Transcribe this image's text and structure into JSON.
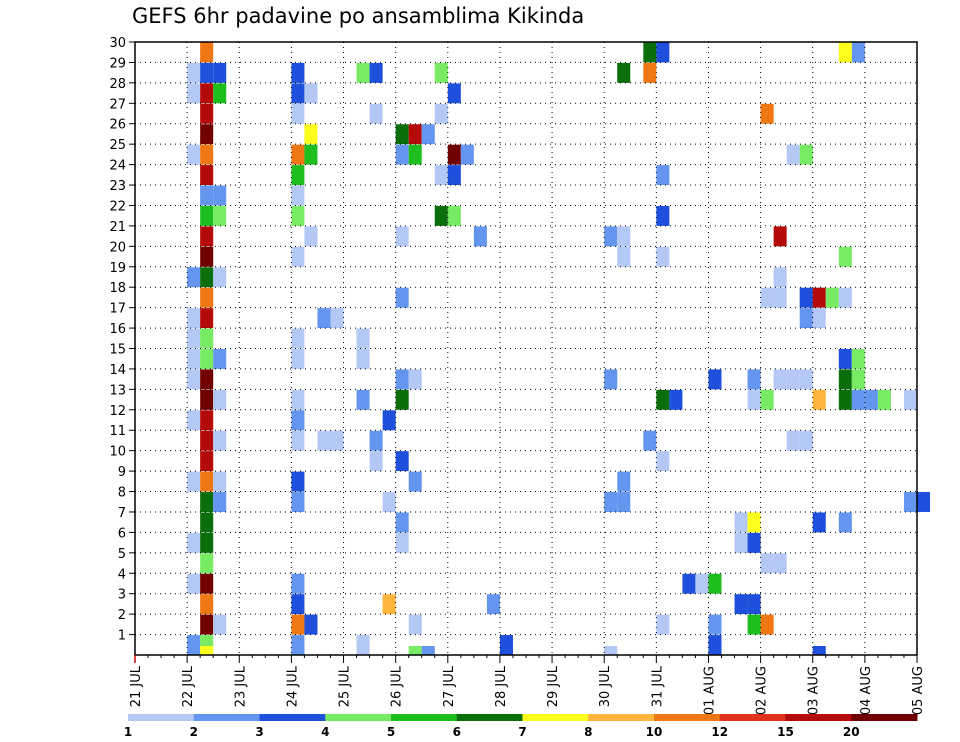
{
  "chart_data": {
    "type": "heatmap",
    "title": "GEFS 6hr padavine po ansamblima Kikinda",
    "x_tick_labels": [
      "21 JUL",
      "22 JUL",
      "23 JUL",
      "24 JUL",
      "25 JUL",
      "26 JUL",
      "27 JUL",
      "28 JUL",
      "29 JUL",
      "30 JUL",
      "31 JUL",
      "01 AUG",
      "02 AUG",
      "03 AUG",
      "04 AUG",
      "05 AUG"
    ],
    "y_tick_labels": [
      "1",
      "2",
      "3",
      "4",
      "5",
      "6",
      "7",
      "8",
      "9",
      "10",
      "11",
      "12",
      "13",
      "14",
      "15",
      "16",
      "17",
      "18",
      "19",
      "20",
      "21",
      "22",
      "23",
      "24",
      "25",
      "26",
      "27",
      "28",
      "29",
      "30"
    ],
    "x_unit": "6-hour step from 21 JUL 00Z",
    "y_unit": "ensemble member",
    "grid": true,
    "colorbar": {
      "tick_labels": [
        "1",
        "2",
        "3",
        "4",
        "5",
        "6",
        "7",
        "8",
        "10",
        "12",
        "15",
        "20"
      ],
      "colors": [
        "#b4c8f5",
        "#6496f0",
        "#1e50dc",
        "#78eb64",
        "#1ebe1e",
        "#0a6e0a",
        "#ffff1e",
        "#ffb43c",
        "#f07814",
        "#e1321e",
        "#b40a0a",
        "#700000"
      ]
    },
    "cells": [
      [
        0,
        4,
        1
      ],
      [
        0,
        5,
        3
      ],
      [
        0,
        12,
        1
      ],
      [
        0,
        17,
        0
      ],
      [
        0,
        28,
        2
      ],
      [
        0,
        44,
        2
      ],
      [
        1,
        5,
        11
      ],
      [
        1,
        6,
        0
      ],
      [
        1,
        12,
        8
      ],
      [
        1,
        13,
        2
      ],
      [
        1,
        21,
        0
      ],
      [
        1,
        40,
        0
      ],
      [
        1,
        44,
        1
      ],
      [
        1,
        47,
        4
      ],
      [
        1,
        48,
        8
      ],
      [
        2,
        5,
        8
      ],
      [
        2,
        12,
        2
      ],
      [
        2,
        19,
        7
      ],
      [
        2,
        27,
        1
      ],
      [
        2,
        46,
        2
      ],
      [
        2,
        47,
        2
      ],
      [
        3,
        4,
        0
      ],
      [
        3,
        5,
        11
      ],
      [
        3,
        12,
        1
      ],
      [
        3,
        42,
        2
      ],
      [
        3,
        43,
        0
      ],
      [
        3,
        44,
        4
      ],
      [
        4,
        5,
        3
      ],
      [
        4,
        48,
        0
      ],
      [
        4,
        49,
        0
      ],
      [
        5,
        4,
        0
      ],
      [
        5,
        5,
        5
      ],
      [
        5,
        20,
        0
      ],
      [
        5,
        46,
        0
      ],
      [
        5,
        47,
        2
      ],
      [
        6,
        5,
        5
      ],
      [
        6,
        20,
        1
      ],
      [
        6,
        46,
        0
      ],
      [
        6,
        47,
        6
      ],
      [
        6,
        52,
        2
      ],
      [
        6,
        54,
        1
      ],
      [
        7,
        5,
        5
      ],
      [
        7,
        6,
        1
      ],
      [
        7,
        12,
        1
      ],
      [
        7,
        19,
        0
      ],
      [
        7,
        36,
        1
      ],
      [
        7,
        37,
        1
      ],
      [
        7,
        59,
        1
      ],
      [
        7,
        60,
        2
      ],
      [
        8,
        4,
        0
      ],
      [
        8,
        5,
        8
      ],
      [
        8,
        6,
        0
      ],
      [
        8,
        12,
        2
      ],
      [
        8,
        21,
        1
      ],
      [
        8,
        37,
        1
      ],
      [
        9,
        5,
        10
      ],
      [
        9,
        18,
        0
      ],
      [
        9,
        20,
        2
      ],
      [
        9,
        40,
        0
      ],
      [
        10,
        5,
        10
      ],
      [
        10,
        6,
        0
      ],
      [
        10,
        12,
        0
      ],
      [
        10,
        14,
        0
      ],
      [
        10,
        15,
        0
      ],
      [
        10,
        18,
        1
      ],
      [
        10,
        39,
        1
      ],
      [
        10,
        50,
        0
      ],
      [
        10,
        51,
        0
      ],
      [
        11,
        4,
        0
      ],
      [
        11,
        5,
        10
      ],
      [
        11,
        12,
        1
      ],
      [
        11,
        19,
        2
      ],
      [
        12,
        5,
        11
      ],
      [
        12,
        6,
        0
      ],
      [
        12,
        12,
        0
      ],
      [
        12,
        17,
        1
      ],
      [
        12,
        20,
        5
      ],
      [
        12,
        40,
        5
      ],
      [
        12,
        41,
        2
      ],
      [
        12,
        47,
        0
      ],
      [
        12,
        48,
        3
      ],
      [
        12,
        52,
        7
      ],
      [
        12,
        54,
        5
      ],
      [
        12,
        55,
        1
      ],
      [
        12,
        56,
        1
      ],
      [
        12,
        57,
        3
      ],
      [
        12,
        59,
        0
      ],
      [
        13,
        4,
        0
      ],
      [
        13,
        5,
        11
      ],
      [
        13,
        20,
        1
      ],
      [
        13,
        21,
        0
      ],
      [
        13,
        36,
        1
      ],
      [
        13,
        44,
        2
      ],
      [
        13,
        47,
        1
      ],
      [
        13,
        49,
        0
      ],
      [
        13,
        50,
        0
      ],
      [
        13,
        51,
        0
      ],
      [
        13,
        54,
        5
      ],
      [
        13,
        55,
        3
      ],
      [
        14,
        4,
        0
      ],
      [
        14,
        5,
        3
      ],
      [
        14,
        6,
        1
      ],
      [
        14,
        12,
        0
      ],
      [
        14,
        17,
        0
      ],
      [
        14,
        54,
        2
      ],
      [
        14,
        55,
        3
      ],
      [
        15,
        4,
        0
      ],
      [
        15,
        5,
        3
      ],
      [
        15,
        12,
        0
      ],
      [
        15,
        17,
        0
      ],
      [
        16,
        4,
        0
      ],
      [
        16,
        5,
        10
      ],
      [
        16,
        14,
        1
      ],
      [
        16,
        15,
        0
      ],
      [
        16,
        51,
        1
      ],
      [
        16,
        52,
        0
      ],
      [
        17,
        5,
        8
      ],
      [
        17,
        20,
        1
      ],
      [
        17,
        48,
        0
      ],
      [
        17,
        49,
        0
      ],
      [
        17,
        51,
        2
      ],
      [
        17,
        52,
        10
      ],
      [
        17,
        53,
        3
      ],
      [
        17,
        54,
        0
      ],
      [
        18,
        4,
        1
      ],
      [
        18,
        5,
        5
      ],
      [
        18,
        6,
        0
      ],
      [
        18,
        49,
        0
      ],
      [
        19,
        5,
        11
      ],
      [
        19,
        12,
        0
      ],
      [
        19,
        37,
        0
      ],
      [
        19,
        40,
        0
      ],
      [
        19,
        54,
        3
      ],
      [
        20,
        5,
        10
      ],
      [
        20,
        13,
        0
      ],
      [
        20,
        20,
        0
      ],
      [
        20,
        26,
        1
      ],
      [
        20,
        36,
        1
      ],
      [
        20,
        37,
        0
      ],
      [
        20,
        49,
        10
      ],
      [
        21,
        5,
        4
      ],
      [
        21,
        6,
        3
      ],
      [
        21,
        12,
        3
      ],
      [
        21,
        23,
        5
      ],
      [
        21,
        24,
        3
      ],
      [
        21,
        40,
        2
      ],
      [
        22,
        5,
        1
      ],
      [
        22,
        6,
        1
      ],
      [
        22,
        12,
        0
      ],
      [
        23,
        5,
        10
      ],
      [
        23,
        12,
        4
      ],
      [
        23,
        23,
        0
      ],
      [
        23,
        24,
        2
      ],
      [
        23,
        40,
        1
      ],
      [
        24,
        4,
        0
      ],
      [
        24,
        5,
        8
      ],
      [
        24,
        12,
        8
      ],
      [
        24,
        13,
        4
      ],
      [
        24,
        20,
        1
      ],
      [
        24,
        21,
        4
      ],
      [
        24,
        24,
        11
      ],
      [
        24,
        25,
        1
      ],
      [
        24,
        50,
        0
      ],
      [
        24,
        51,
        3
      ],
      [
        25,
        5,
        11
      ],
      [
        25,
        13,
        6
      ],
      [
        25,
        20,
        5
      ],
      [
        25,
        21,
        10
      ],
      [
        25,
        22,
        1
      ],
      [
        26,
        5,
        10
      ],
      [
        26,
        12,
        0
      ],
      [
        26,
        18,
        0
      ],
      [
        26,
        23,
        0
      ],
      [
        26,
        48,
        8
      ],
      [
        27,
        4,
        0
      ],
      [
        27,
        5,
        10
      ],
      [
        27,
        6,
        4
      ],
      [
        27,
        12,
        2
      ],
      [
        27,
        13,
        0
      ],
      [
        27,
        24,
        2
      ],
      [
        28,
        4,
        0
      ],
      [
        28,
        5,
        2
      ],
      [
        28,
        6,
        2
      ],
      [
        28,
        12,
        2
      ],
      [
        28,
        17,
        3
      ],
      [
        28,
        18,
        2
      ],
      [
        28,
        23,
        3
      ],
      [
        28,
        37,
        5
      ],
      [
        28,
        39,
        8
      ],
      [
        29,
        5,
        8
      ],
      [
        29,
        39,
        5
      ],
      [
        29,
        40,
        2
      ],
      [
        29,
        54,
        6
      ],
      [
        29,
        55,
        1
      ]
    ],
    "row0_marks": [
      [
        5,
        6
      ],
      [
        12,
        1
      ],
      [
        21,
        3
      ],
      [
        22,
        1
      ],
      [
        36,
        0
      ],
      [
        52,
        2
      ]
    ]
  }
}
